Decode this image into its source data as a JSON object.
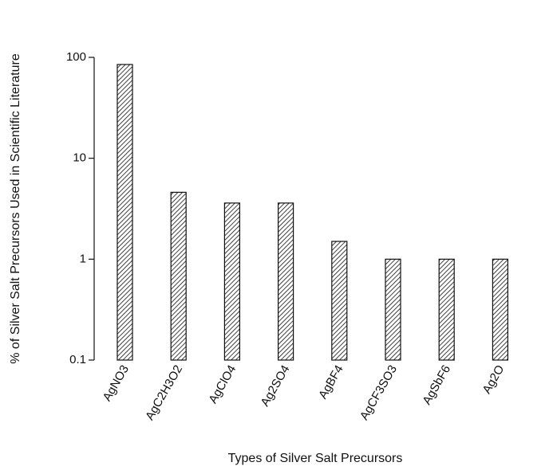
{
  "chart_data": {
    "type": "bar",
    "scale_y": "log",
    "categories": [
      "AgNO3",
      "AgC2H3O2",
      "AgClO4",
      "Ag2SO4",
      "AgBF4",
      "AgCF3SO3",
      "AgSbF6",
      "Ag2O"
    ],
    "values": [
      85,
      4.6,
      3.6,
      3.6,
      1.5,
      1.0,
      1.0,
      1.0
    ],
    "xlabel": "Types of Silver Salt Precursors",
    "ylabel": "% of Silver Salt Precursors Used in Scientific Literature",
    "ylim": [
      0.1,
      100
    ],
    "yticks": [
      0.1,
      1,
      10,
      100
    ],
    "ytick_labels": [
      "0.1",
      "1",
      "10",
      "100"
    ],
    "grid": false,
    "bar_fill": "hatched",
    "colors": {
      "bar_stroke": "#111111",
      "hatch": "#111111",
      "axis": "#111111"
    }
  }
}
